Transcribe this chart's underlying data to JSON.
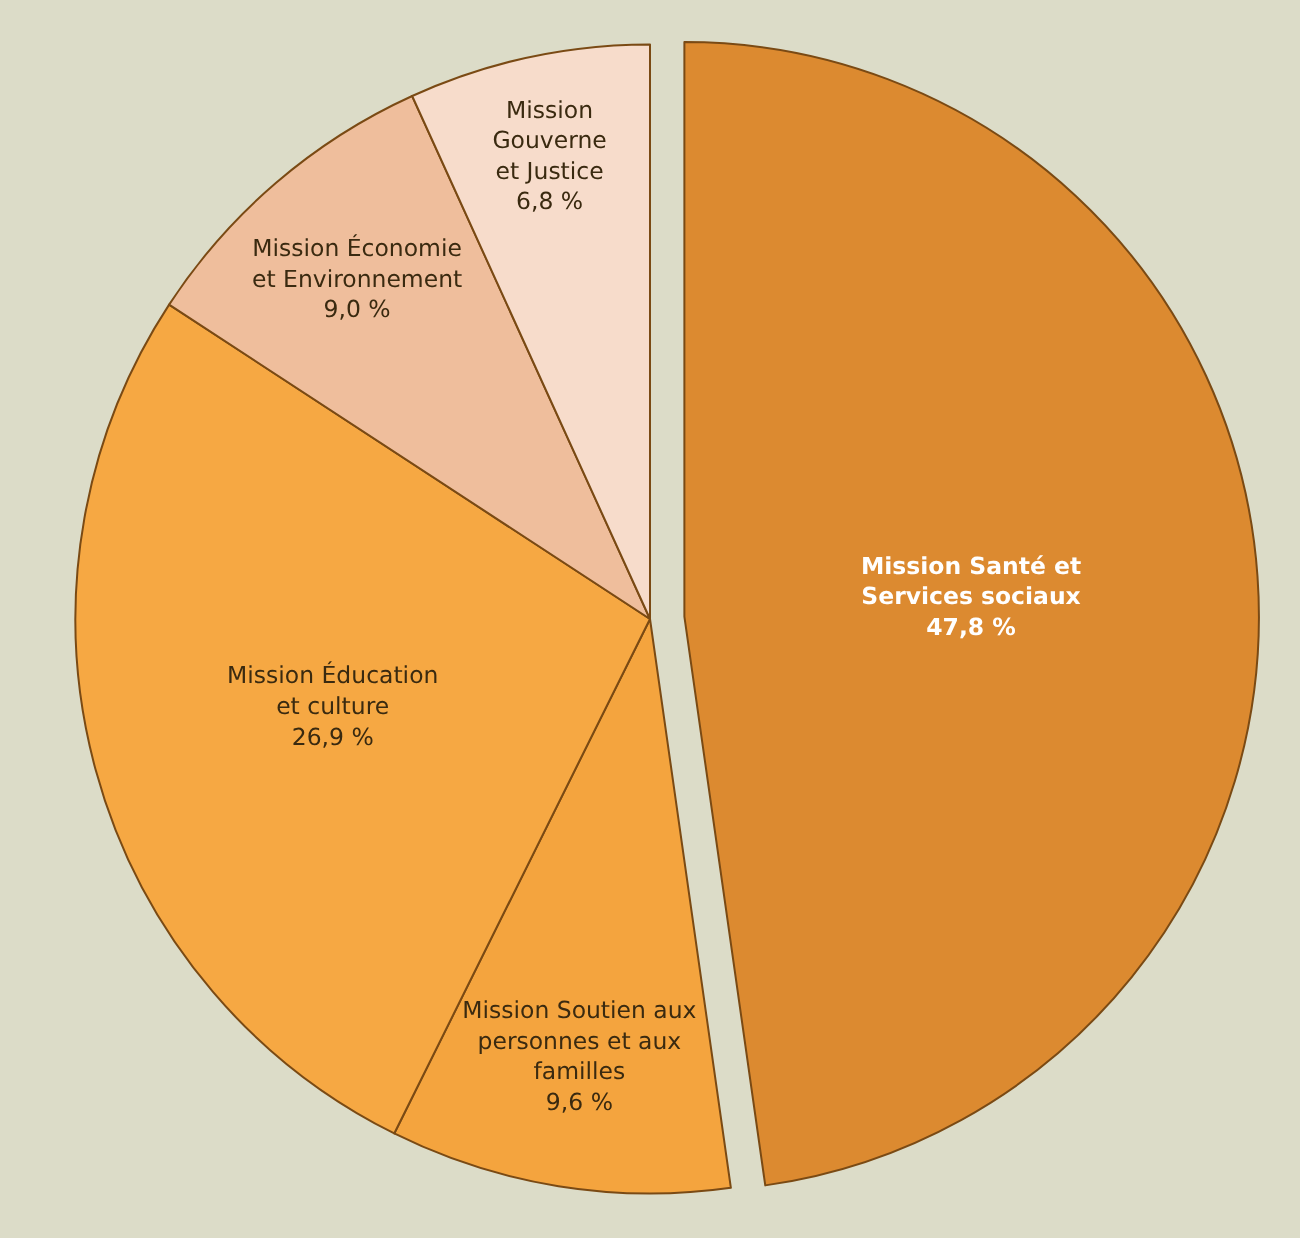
{
  "chart_data": {
    "type": "pie",
    "categories": [
      "Mission Santé et\nServices sociaux",
      "Mission Soutien aux\npersonnes et aux\nfamilles",
      "Mission Éducation\net culture",
      "Mission Économie\net Environnement",
      "Mission\nGouverne\net Justice"
    ],
    "values": [
      47.8,
      9.6,
      26.9,
      9.0,
      6.8
    ],
    "value_labels": [
      "47,8 %",
      "9,6 %",
      "26,9 %",
      "9,0 %",
      "6,8 %"
    ],
    "colors": [
      "#dc8a30",
      "#f4a43e",
      "#f6a843",
      "#efbe9c",
      "#f7dccb"
    ]
  }
}
